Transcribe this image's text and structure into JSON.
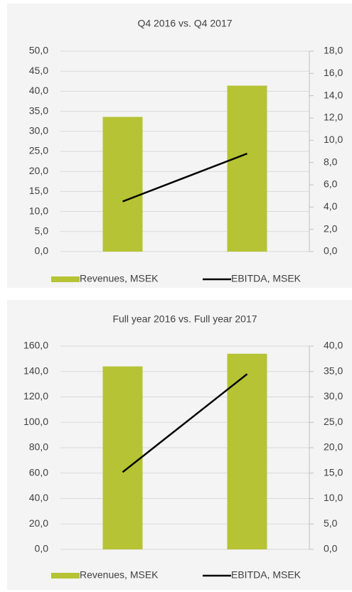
{
  "chart_data": [
    {
      "type": "bar_line",
      "title": "Q4 2016 vs. Q4 2017",
      "categories": [
        null,
        null
      ],
      "series": [
        {
          "name": "Revenues, MSEK",
          "color": "#b5c334",
          "type": "bar",
          "values": [
            33.6,
            41.4
          ]
        },
        {
          "name": "EBITDA, MSEK",
          "color": "#000000",
          "type": "line",
          "axis": "y2",
          "values": [
            4.5,
            8.8
          ]
        }
      ],
      "ylim": [
        0,
        50
      ],
      "yticks": [
        {
          "value": 0,
          "label": "0,0"
        },
        {
          "value": 5,
          "label": "5,0"
        },
        {
          "value": 10,
          "label": "10,0"
        },
        {
          "value": 15,
          "label": "15,0"
        },
        {
          "value": 20,
          "label": "20,0"
        },
        {
          "value": 25,
          "label": "25,0"
        },
        {
          "value": 30,
          "label": "30,0"
        },
        {
          "value": 35,
          "label": "35,0"
        },
        {
          "value": 40,
          "label": "40,0"
        },
        {
          "value": 45,
          "label": "45,0"
        },
        {
          "value": 50,
          "label": "50,0"
        }
      ],
      "y2lim": [
        0,
        18
      ],
      "y2ticks": [
        {
          "value": 0,
          "label": "0,0"
        },
        {
          "value": 2,
          "label": "2,0"
        },
        {
          "value": 4,
          "label": "4,0"
        },
        {
          "value": 6,
          "label": "6,0"
        },
        {
          "value": 8,
          "label": "8,0"
        },
        {
          "value": 10,
          "label": "10,0"
        },
        {
          "value": 12,
          "label": "12,0"
        },
        {
          "value": 14,
          "label": "14,0"
        },
        {
          "value": 16,
          "label": "16,0"
        },
        {
          "value": 18,
          "label": "18,0"
        }
      ],
      "grid": true,
      "legend": "bottom"
    },
    {
      "type": "bar_line",
      "title": "Full year 2016 vs. Full year 2017",
      "categories": [
        null,
        null
      ],
      "series": [
        {
          "name": "Revenues, MSEK",
          "color": "#b5c334",
          "type": "bar",
          "values": [
            144,
            154
          ]
        },
        {
          "name": "EBITDA, MSEK",
          "color": "#000000",
          "type": "line",
          "axis": "y2",
          "values": [
            15.2,
            34.5
          ]
        }
      ],
      "ylim": [
        0,
        160
      ],
      "yticks": [
        {
          "value": 0,
          "label": "0,0"
        },
        {
          "value": 20,
          "label": "20,0"
        },
        {
          "value": 40,
          "label": "40,0"
        },
        {
          "value": 60,
          "label": "60,0"
        },
        {
          "value": 80,
          "label": "80,0"
        },
        {
          "value": 100,
          "label": "100,0"
        },
        {
          "value": 120,
          "label": "120,0"
        },
        {
          "value": 140,
          "label": "140,0"
        },
        {
          "value": 160,
          "label": "160,0"
        }
      ],
      "y2lim": [
        0,
        40
      ],
      "y2ticks": [
        {
          "value": 0,
          "label": "0,0"
        },
        {
          "value": 5,
          "label": "5,0"
        },
        {
          "value": 10,
          "label": "10,0"
        },
        {
          "value": 15,
          "label": "15,0"
        },
        {
          "value": 20,
          "label": "20,0"
        },
        {
          "value": 25,
          "label": "25,0"
        },
        {
          "value": 30,
          "label": "30,0"
        },
        {
          "value": 35,
          "label": "35,0"
        },
        {
          "value": 40,
          "label": "40,0"
        }
      ],
      "grid": true,
      "legend": "bottom"
    }
  ]
}
